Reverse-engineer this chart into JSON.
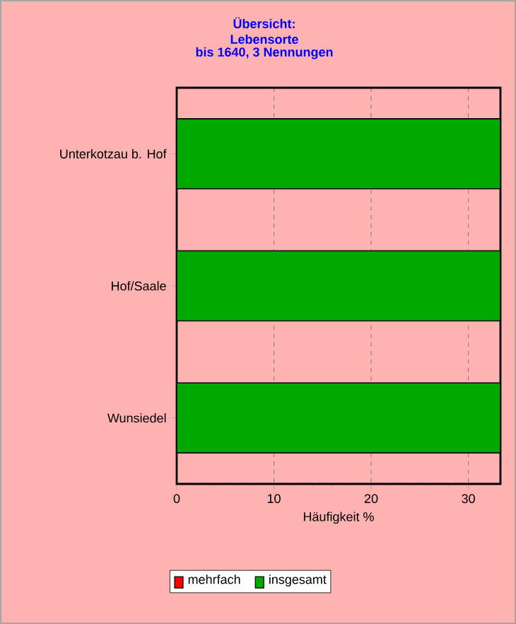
{
  "chart_data": {
    "type": "bar",
    "orientation": "horizontal",
    "title": "Übersicht: Lebensorte",
    "subtitle": "bis 1640, 3 Nennungen",
    "categories": [
      "Unterkotzau b. Hof",
      "Hof/Saale",
      "Wunsiedel"
    ],
    "series": [
      {
        "name": "mehrfach",
        "color": "#ff0000",
        "values": [
          0,
          0,
          0
        ]
      },
      {
        "name": "insgesamt",
        "color": "#00a800",
        "values": [
          33.3,
          33.3,
          33.3
        ]
      }
    ],
    "xlabel": "Häufigkeit %",
    "xlim": [
      0,
      33.3
    ],
    "xticks": [
      0,
      10,
      20,
      30
    ],
    "grid": "x",
    "legend": "bottom"
  }
}
